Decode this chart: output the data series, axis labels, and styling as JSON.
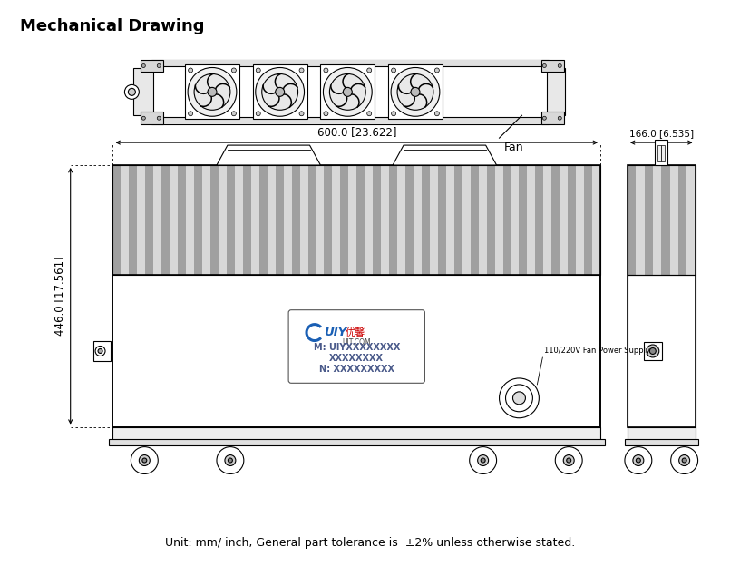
{
  "title": "Mechanical Drawing",
  "footer": "Unit: mm/ inch, General part tolerance is  ±2% unless otherwise stated.",
  "dim_width": "600.0 [23.622]",
  "dim_height": "446.0 [17.561]",
  "dim_side": "166.0 [6.535]",
  "fan_label": "Fan",
  "power_label": "110/220V Fan Power Supply",
  "label_line1": "M: UIYXXXXXXXX",
  "label_line2": "XXXXXXXX",
  "label_line3": "N: XXXXXXXXX",
  "bg_color": "#ffffff",
  "line_color": "#000000",
  "stripe_light": "#d8d8d8",
  "stripe_dark": "#a0a0a0",
  "label_text_color": "#4a5a8a",
  "logo_blue": "#1a5fb4",
  "logo_red": "#cc0000"
}
